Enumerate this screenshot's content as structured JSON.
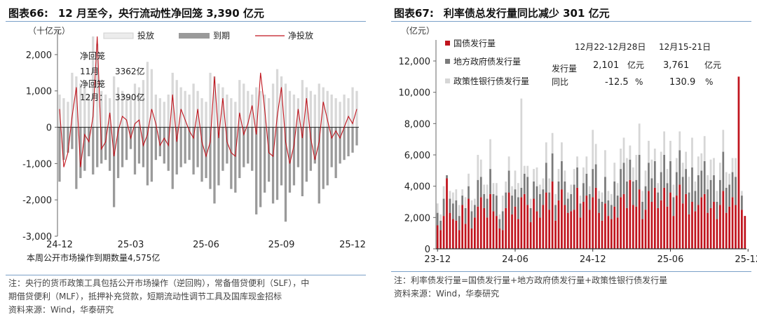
{
  "left": {
    "fig_label": "图表66:",
    "fig_title": "12 月至今，央行流动性净回笼 3,390 亿元",
    "notes": [
      "注：央行的货币政策工具包括公开市场操作（逆回购），常备借贷便利（SLF），中",
      "期借贷便利（MLF），抵押补充贷款，短期流动性调节工具及国库现金招标",
      "资料来源：Wind，华泰研究"
    ]
  },
  "right": {
    "fig_label": "图表67:",
    "fig_title": "利率债总发行量同比减少 301 亿元",
    "notes": [
      "注：利率债发行量=国债发行量+地方政府债发行量+政策性银行债发行量",
      "资料来源：Wind，华泰研究"
    ]
  },
  "colors": {
    "inject": "#d8d8d8",
    "mature": "#9a9a9a",
    "net": "#c0141d",
    "gov": "#c0141d",
    "local": "#7b7b7b",
    "policy": "#d6d6d6",
    "rule": "#7aa0c8"
  },
  "chart_data": [
    {
      "type": "bar",
      "unit": "（十亿元）",
      "legend": [
        "投放",
        "到期",
        "净投放"
      ],
      "ylim": [
        -3000,
        2500
      ],
      "yticks": [
        "2,000",
        "1,000",
        "0",
        "-1,000",
        "-2,000",
        "-3,000"
      ],
      "ytick_values": [
        2000,
        1000,
        0,
        -1000,
        -2000,
        -3000
      ],
      "xticks": [
        "24-12",
        "25-03",
        "25-06",
        "25-09",
        "25-12"
      ],
      "xtick_index": [
        0,
        17,
        35,
        53,
        70
      ],
      "annotations": [
        "净回笼",
        "11月",
        "3362亿",
        "净回笼",
        "12月：",
        "3390亿"
      ],
      "footer": "本周公开市场操作到期数量4,575亿",
      "series": [
        {
          "name": "投放",
          "values": [
            900,
            800,
            700,
            1500,
            1400,
            1200,
            1100,
            900,
            2500,
            2300,
            1000,
            900,
            800,
            1400,
            1100,
            1000,
            900,
            800,
            1200,
            1100,
            1300,
            1800,
            1600,
            900,
            800,
            700,
            900,
            1500,
            1300,
            1100,
            1000,
            900,
            1200,
            1000,
            800,
            700,
            1500,
            1400,
            1200,
            1100,
            900,
            800,
            700,
            1300,
            1200,
            1000,
            900,
            1100,
            1000,
            900,
            800,
            1200,
            1600,
            1400,
            1200,
            1000,
            900,
            800,
            1300,
            1100,
            1000,
            900,
            1200,
            1100,
            1000,
            900,
            800,
            700,
            900,
            800,
            1100,
            1000
          ]
        },
        {
          "name": "到期",
          "values": [
            -1500,
            -900,
            -700,
            -600,
            -1700,
            -1400,
            -1200,
            -800,
            -1300,
            -1100,
            -1000,
            -900,
            -1200,
            -2200,
            -1400,
            -1100,
            -900,
            -600,
            -1300,
            -1000,
            -1100,
            -1600,
            -1500,
            -900,
            -800,
            -1000,
            -1200,
            -1700,
            -1300,
            -1100,
            -1000,
            -900,
            -1300,
            -1100,
            -1500,
            -1400,
            -1700,
            -2100,
            -1600,
            -1200,
            -1000,
            -1700,
            -1800,
            -1400,
            -1100,
            -1000,
            -1200,
            -2400,
            -2200,
            -1800,
            -1500,
            -2100,
            -2000,
            -1600,
            -2600,
            -1800,
            -1600,
            -1100,
            -1900,
            -1500,
            -1200,
            -1000,
            -2100,
            -1700,
            -1600,
            -1100,
            -1400,
            -1000,
            -900,
            -800,
            -700,
            -500
          ]
        },
        {
          "name": "净投放",
          "values": [
            500,
            -1100,
            -700,
            300,
            1100,
            -1100,
            -200,
            -400,
            300,
            2500,
            -600,
            -400,
            400,
            -800,
            -100,
            300,
            200,
            -300,
            100,
            200,
            -500,
            -200,
            500,
            100,
            -500,
            -300,
            -500,
            900,
            -400,
            500,
            200,
            -100,
            -300,
            500,
            -400,
            -800,
            -400,
            1400,
            -300,
            800,
            -400,
            -700,
            -800,
            400,
            -200,
            100,
            600,
            -200,
            1500,
            500,
            -700,
            -800,
            300,
            1100,
            -400,
            -1000,
            -500,
            500,
            -300,
            800,
            -300,
            -900,
            -400,
            700,
            200,
            -300,
            -100,
            -300,
            0,
            300,
            100,
            500
          ]
        }
      ]
    },
    {
      "type": "bar",
      "stacked": true,
      "unit": "（亿元）",
      "legend": [
        "国债发行量",
        "地方政府债发行量",
        "政策性银行债发行量"
      ],
      "ylim": [
        0,
        12000
      ],
      "yticks": [
        "12,000",
        "10,000",
        "8,000",
        "6,000",
        "4,000",
        "2,000",
        "0"
      ],
      "ytick_values": [
        12000,
        10000,
        8000,
        6000,
        4000,
        2000,
        0
      ],
      "xticks": [
        "23-12",
        "24-06",
        "24-12",
        "25-06",
        "25-12"
      ],
      "xtick_index": [
        0,
        25,
        50,
        75,
        100
      ],
      "table": {
        "periods": [
          "12月22-12月28日",
          "12月15-21日"
        ],
        "rows": [
          {
            "label": "发行量",
            "values": [
              "2,101",
              "3,761"
            ],
            "unit": "亿元"
          },
          {
            "label": "同比",
            "values": [
              "-12.5",
              "130.9"
            ],
            "unit": "%"
          }
        ]
      },
      "series": [
        {
          "name": "国债发行量",
          "values": [
            1500,
            1200,
            2100,
            4500,
            2300,
            1900,
            1800,
            1200,
            2800,
            1600,
            3200,
            1300,
            2000,
            2700,
            3300,
            2600,
            2000,
            3500,
            2400,
            2100,
            1300,
            1200,
            2600,
            3600,
            2200,
            2700,
            1900,
            3300,
            3500,
            2800,
            1700,
            3200,
            2400,
            2000,
            2800,
            3600,
            2500,
            4300,
            1800,
            3100,
            3800,
            2800,
            2300,
            2400,
            2500,
            3900,
            2000,
            3000,
            3400,
            2500,
            3300,
            3900,
            2300,
            1800,
            2900,
            2100,
            1900,
            2700,
            2000,
            3300,
            3500,
            2600,
            4400,
            2800,
            2700,
            3800,
            1900,
            2500,
            3700,
            3000,
            3900,
            2600,
            3100,
            3900,
            2700,
            3600,
            2100,
            3400,
            4100,
            2900,
            3500,
            2200,
            3000,
            2400,
            2800,
            3300,
            3500,
            2300,
            2600,
            3000,
            1900,
            2800,
            3700,
            2300,
            2700,
            3300,
            2800,
            11000,
            2500,
            2100
          ]
        },
        {
          "name": "地方政府债发行量",
          "values": [
            800,
            600,
            1100,
            200,
            900,
            1000,
            1300,
            900,
            600,
            1000,
            800,
            1100,
            800,
            1700,
            1300,
            900,
            1200,
            1600,
            1100,
            1300,
            600,
            1200,
            1000,
            1400,
            1200,
            1100,
            1400,
            600,
            1300,
            1800,
            900,
            1100,
            1600,
            1500,
            1000,
            1900,
            1100,
            1800,
            1000,
            1200,
            1800,
            1500,
            900,
            1100,
            1600,
            1300,
            900,
            1200,
            1400,
            1000,
            1800,
            1500,
            900,
            1200,
            1700,
            1000,
            900,
            1600,
            1400,
            1800,
            2000,
            1700,
            1300,
            1500,
            1700,
            2200,
            1100,
            1500,
            1800,
            1500,
            1700,
            1000,
            1800,
            2100,
            1500,
            2000,
            1200,
            1500,
            2200,
            1700,
            1600,
            1400,
            2200,
            1300,
            1900,
            1700,
            2100,
            1500,
            1800,
            1700,
            1100,
            1600,
            2500,
            1600,
            1400,
            1600,
            1800,
            0,
            900,
            0
          ]
        },
        {
          "name": "政策性银行债发行量",
          "values": [
            600,
            400,
            800,
            0,
            500,
            700,
            700,
            700,
            400,
            700,
            800,
            700,
            400,
            1600,
            1100,
            600,
            900,
            1900,
            700,
            800,
            300,
            1000,
            700,
            900,
            600,
            1200,
            900,
            5700,
            500,
            700,
            600,
            800,
            1200,
            600,
            700,
            1300,
            900,
            1300,
            700,
            800,
            1200,
            700,
            400,
            600,
            1000,
            700,
            500,
            1000,
            1100,
            500,
            2500,
            1300,
            500,
            600,
            1700,
            600,
            700,
            1200,
            800,
            1300,
            1600,
            1500,
            900,
            900,
            1600,
            2000,
            700,
            1000,
            1400,
            1200,
            800,
            600,
            1300,
            1500,
            900,
            1300,
            800,
            900,
            1200,
            900,
            1100,
            1000,
            1900,
            600,
            1200,
            1100,
            1600,
            900,
            1300,
            1100,
            700,
            1100,
            1400,
            1000,
            700,
            900,
            1200,
            0,
            300,
            0
          ]
        }
      ]
    }
  ]
}
